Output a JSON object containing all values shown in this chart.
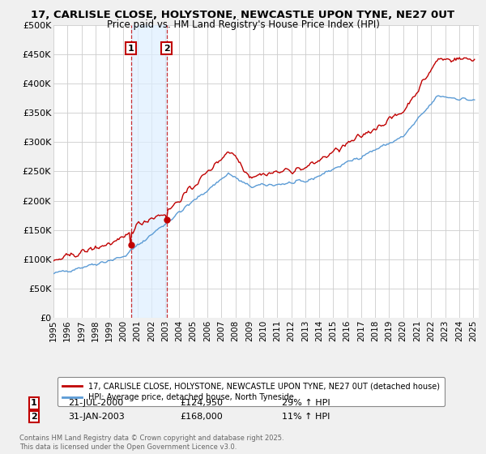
{
  "title": "17, CARLISLE CLOSE, HOLYSTONE, NEWCASTLE UPON TYNE, NE27 0UT",
  "subtitle": "Price paid vs. HM Land Registry's House Price Index (HPI)",
  "ylim": [
    0,
    500000
  ],
  "yticks": [
    0,
    50000,
    100000,
    150000,
    200000,
    250000,
    300000,
    350000,
    400000,
    450000,
    500000
  ],
  "ytick_labels": [
    "£0",
    "£50K",
    "£100K",
    "£150K",
    "£200K",
    "£250K",
    "£300K",
    "£350K",
    "£400K",
    "£450K",
    "£500K"
  ],
  "hpi_color": "#5b9bd5",
  "price_color": "#c00000",
  "sale1_t": 2000.54,
  "sale2_t": 2003.08,
  "sale1_price": 124950,
  "sale2_price": 168000,
  "sale1_date": "21-JUL-2000",
  "sale2_date": "31-JAN-2003",
  "sale1_hpi_str": "29% ↑ HPI",
  "sale2_hpi_str": "11% ↑ HPI",
  "sale1_price_str": "£124,950",
  "sale2_price_str": "£168,000",
  "legend_line1": "17, CARLISLE CLOSE, HOLYSTONE, NEWCASTLE UPON TYNE, NE27 0UT (detached house)",
  "legend_line2": "HPI: Average price, detached house, North Tyneside",
  "footnote": "Contains HM Land Registry data © Crown copyright and database right 2025.\nThis data is licensed under the Open Government Licence v3.0.",
  "bg_color": "#f0f0f0",
  "plot_bg": "#ffffff",
  "grid_color": "#cccccc",
  "shade_color": "#ddeeff",
  "xlim_start": 1995.0,
  "xlim_end": 2025.4
}
